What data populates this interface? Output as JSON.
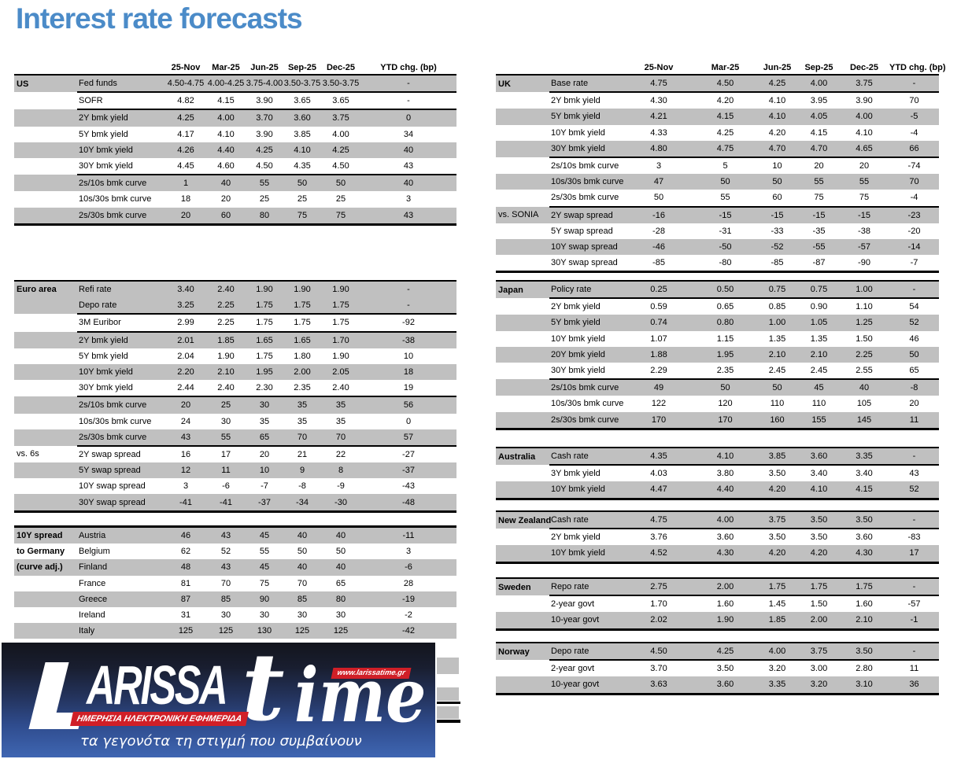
{
  "title": "Interest rate forecasts",
  "colors": {
    "title_blue": "#4b8bc8",
    "row_shade_gray": "#c0c0c0",
    "logo_red": "#d01f27",
    "logo_gradient_top": "#13151d",
    "logo_gradient_bottom": "#3f66b2"
  },
  "columns": [
    "25-Nov",
    "Mar-25",
    "Jun-25",
    "Sep-25",
    "Dec-25",
    "YTD chg. (bp)"
  ],
  "tables": [
    {
      "id": "us",
      "rows": [
        {
          "g": "US",
          "label": "Fed funds",
          "v": [
            "4.50-4.75",
            "4.00-4.25",
            "3.75-4.00",
            "3.50-3.75",
            "3.50-3.75"
          ],
          "ytd": "-",
          "shade": true,
          "sep": true
        },
        {
          "label": "SOFR",
          "v": [
            "4.82",
            "4.15",
            "3.90",
            "3.65",
            "3.65"
          ],
          "ytd": "-",
          "sep": true
        },
        {
          "label": "2Y bmk yield",
          "v": [
            "4.25",
            "4.00",
            "3.70",
            "3.60",
            "3.75"
          ],
          "ytd": "0",
          "shade": true
        },
        {
          "label": "5Y bmk yield",
          "v": [
            "4.17",
            "4.10",
            "3.90",
            "3.85",
            "4.00"
          ],
          "ytd": "34"
        },
        {
          "label": "10Y bmk yield",
          "v": [
            "4.26",
            "4.40",
            "4.25",
            "4.10",
            "4.25"
          ],
          "ytd": "40",
          "shade": true
        },
        {
          "label": "30Y bmk yield",
          "v": [
            "4.45",
            "4.60",
            "4.50",
            "4.35",
            "4.50"
          ],
          "ytd": "43",
          "sep": true
        },
        {
          "label": "2s/10s bmk curve",
          "v": [
            "1",
            "40",
            "55",
            "50",
            "50"
          ],
          "ytd": "40",
          "shade": true
        },
        {
          "label": "10s/30s bmk curve",
          "v": [
            "18",
            "20",
            "25",
            "25",
            "25"
          ],
          "ytd": "3"
        },
        {
          "label": "2s/30s bmk curve",
          "v": [
            "20",
            "60",
            "80",
            "75",
            "75"
          ],
          "ytd": "43",
          "shade": true
        }
      ]
    },
    {
      "id": "euro_area",
      "rows": [
        {
          "g": "Euro area",
          "label": "Refi rate",
          "v": [
            "3.40",
            "2.40",
            "1.90",
            "1.90",
            "1.90"
          ],
          "ytd": "-",
          "shade": true
        },
        {
          "label": "Depo rate",
          "v": [
            "3.25",
            "2.25",
            "1.75",
            "1.75",
            "1.75"
          ],
          "ytd": "-",
          "shade": true,
          "sep": true
        },
        {
          "label": "3M Euribor",
          "v": [
            "2.99",
            "2.25",
            "1.75",
            "1.75",
            "1.75"
          ],
          "ytd": "-92",
          "sep": true
        },
        {
          "label": "2Y bmk yield",
          "v": [
            "2.01",
            "1.85",
            "1.65",
            "1.65",
            "1.70"
          ],
          "ytd": "-38",
          "shade": true
        },
        {
          "label": "5Y bmk yield",
          "v": [
            "2.04",
            "1.90",
            "1.75",
            "1.80",
            "1.90"
          ],
          "ytd": "10"
        },
        {
          "label": "10Y bmk yield",
          "v": [
            "2.20",
            "2.10",
            "1.95",
            "2.00",
            "2.05"
          ],
          "ytd": "18",
          "shade": true
        },
        {
          "label": "30Y bmk yield",
          "v": [
            "2.44",
            "2.40",
            "2.30",
            "2.35",
            "2.40"
          ],
          "ytd": "19",
          "sep": true
        },
        {
          "label": "2s/10s bmk curve",
          "v": [
            "20",
            "25",
            "30",
            "35",
            "35"
          ],
          "ytd": "56",
          "shade": true
        },
        {
          "label": "10s/30s bmk curve",
          "v": [
            "24",
            "30",
            "35",
            "35",
            "35"
          ],
          "ytd": "0"
        },
        {
          "label": "2s/30s bmk curve",
          "v": [
            "43",
            "55",
            "65",
            "70",
            "70"
          ],
          "ytd": "57",
          "shade": true,
          "sep": true
        },
        {
          "g": "vs. 6s",
          "label": "2Y swap spread",
          "v": [
            "16",
            "17",
            "20",
            "21",
            "22"
          ],
          "ytd": "-27"
        },
        {
          "label": "5Y swap spread",
          "v": [
            "12",
            "11",
            "10",
            "9",
            "8"
          ],
          "ytd": "-37",
          "shade": true
        },
        {
          "label": "10Y swap spread",
          "v": [
            "3",
            "-6",
            "-7",
            "-8",
            "-9"
          ],
          "ytd": "-43"
        },
        {
          "label": "30Y swap spread",
          "v": [
            "-41",
            "-41",
            "-37",
            "-34",
            "-30"
          ],
          "ytd": "-48",
          "shade": true
        }
      ]
    },
    {
      "id": "spread_10y_germany",
      "rows": [
        {
          "g": "10Y spread",
          "label": "Austria",
          "v": [
            "46",
            "43",
            "45",
            "40",
            "40"
          ],
          "ytd": "-11",
          "shade": true
        },
        {
          "g": "to Germany",
          "label": "Belgium",
          "v": [
            "62",
            "52",
            "55",
            "50",
            "50"
          ],
          "ytd": "3"
        },
        {
          "g": "(curve adj.)",
          "label": "Finland",
          "v": [
            "48",
            "43",
            "45",
            "40",
            "40"
          ],
          "ytd": "-6",
          "shade": true
        },
        {
          "label": "France",
          "v": [
            "81",
            "70",
            "75",
            "70",
            "65"
          ],
          "ytd": "28"
        },
        {
          "label": "Greece",
          "v": [
            "87",
            "85",
            "90",
            "85",
            "80"
          ],
          "ytd": "-19",
          "shade": true
        },
        {
          "label": "Ireland",
          "v": [
            "31",
            "30",
            "30",
            "30",
            "30"
          ],
          "ytd": "-2"
        },
        {
          "label": "Italy",
          "v": [
            "125",
            "125",
            "130",
            "125",
            "125"
          ],
          "ytd": "-42",
          "shade": true
        }
      ]
    },
    {
      "id": "uk",
      "rows": [
        {
          "g": "UK",
          "label": "Base rate",
          "v": [
            "4.75",
            "4.50",
            "4.25",
            "4.00",
            "3.75"
          ],
          "ytd": "-",
          "shade": true,
          "sep": true
        },
        {
          "label": "2Y bmk yield",
          "v": [
            "4.30",
            "4.20",
            "4.10",
            "3.95",
            "3.90"
          ],
          "ytd": "70"
        },
        {
          "label": "5Y bmk yield",
          "v": [
            "4.21",
            "4.15",
            "4.10",
            "4.05",
            "4.00"
          ],
          "ytd": "-5",
          "shade": true
        },
        {
          "label": "10Y bmk yield",
          "v": [
            "4.33",
            "4.25",
            "4.20",
            "4.15",
            "4.10"
          ],
          "ytd": "-4"
        },
        {
          "label": "30Y bmk yield",
          "v": [
            "4.80",
            "4.75",
            "4.70",
            "4.70",
            "4.65"
          ],
          "ytd": "66",
          "shade": true,
          "sep": true
        },
        {
          "label": "2s/10s bmk curve",
          "v": [
            "3",
            "5",
            "10",
            "20",
            "20"
          ],
          "ytd": "-74"
        },
        {
          "label": "10s/30s bmk curve",
          "v": [
            "47",
            "50",
            "50",
            "55",
            "55"
          ],
          "ytd": "70",
          "shade": true
        },
        {
          "label": "2s/30s bmk curve",
          "v": [
            "50",
            "55",
            "60",
            "75",
            "75"
          ],
          "ytd": "-4",
          "sep": true
        },
        {
          "g": "vs. SONIA",
          "label": "2Y swap spread",
          "v": [
            "-16",
            "-15",
            "-15",
            "-15",
            "-15"
          ],
          "ytd": "-23",
          "shade": true
        },
        {
          "label": "5Y swap spread",
          "v": [
            "-28",
            "-31",
            "-33",
            "-35",
            "-38"
          ],
          "ytd": "-20"
        },
        {
          "label": "10Y swap spread",
          "v": [
            "-46",
            "-50",
            "-52",
            "-55",
            "-57"
          ],
          "ytd": "-14",
          "shade": true
        },
        {
          "label": "30Y swap spread",
          "v": [
            "-85",
            "-80",
            "-85",
            "-87",
            "-90"
          ],
          "ytd": "-7"
        }
      ]
    },
    {
      "id": "japan",
      "rows": [
        {
          "g": "Japan",
          "label": "Policy rate",
          "v": [
            "0.25",
            "0.50",
            "0.75",
            "0.75",
            "1.00"
          ],
          "ytd": "-",
          "shade": true,
          "sep": true
        },
        {
          "label": "2Y bmk yield",
          "v": [
            "0.59",
            "0.65",
            "0.85",
            "0.90",
            "1.10"
          ],
          "ytd": "54"
        },
        {
          "label": "5Y bmk yield",
          "v": [
            "0.74",
            "0.80",
            "1.00",
            "1.05",
            "1.25"
          ],
          "ytd": "52",
          "shade": true
        },
        {
          "label": "10Y bmk yield",
          "v": [
            "1.07",
            "1.15",
            "1.35",
            "1.35",
            "1.50"
          ],
          "ytd": "46"
        },
        {
          "label": "20Y bmk yield",
          "v": [
            "1.88",
            "1.95",
            "2.10",
            "2.10",
            "2.25"
          ],
          "ytd": "50",
          "shade": true
        },
        {
          "label": "30Y bmk yield",
          "v": [
            "2.29",
            "2.35",
            "2.45",
            "2.45",
            "2.55"
          ],
          "ytd": "65",
          "sep": true
        },
        {
          "label": "2s/10s bmk curve",
          "v": [
            "49",
            "50",
            "50",
            "45",
            "40"
          ],
          "ytd": "-8",
          "shade": true
        },
        {
          "label": "10s/30s bmk curve",
          "v": [
            "122",
            "120",
            "110",
            "110",
            "105"
          ],
          "ytd": "20"
        },
        {
          "label": "2s/30s bmk curve",
          "v": [
            "170",
            "170",
            "160",
            "155",
            "145"
          ],
          "ytd": "11",
          "shade": true
        }
      ]
    },
    {
      "id": "australia",
      "rows": [
        {
          "g": "Australia",
          "label": "Cash rate",
          "v": [
            "4.35",
            "4.10",
            "3.85",
            "3.60",
            "3.35"
          ],
          "ytd": "-",
          "shade": true,
          "sep": true
        },
        {
          "label": "3Y bmk yield",
          "v": [
            "4.03",
            "3.80",
            "3.50",
            "3.40",
            "3.40"
          ],
          "ytd": "43"
        },
        {
          "label": "10Y bmk yield",
          "v": [
            "4.47",
            "4.40",
            "4.20",
            "4.10",
            "4.15"
          ],
          "ytd": "52",
          "shade": true
        }
      ]
    },
    {
      "id": "new_zealand",
      "rows": [
        {
          "g": "New Zealand",
          "label": "Cash rate",
          "v": [
            "4.75",
            "4.00",
            "3.75",
            "3.50",
            "3.50"
          ],
          "ytd": "-",
          "shade": true,
          "sep": true
        },
        {
          "label": "2Y bmk yield",
          "v": [
            "3.76",
            "3.60",
            "3.50",
            "3.50",
            "3.60"
          ],
          "ytd": "-83"
        },
        {
          "label": "10Y bmk yield",
          "v": [
            "4.52",
            "4.30",
            "4.20",
            "4.20",
            "4.30"
          ],
          "ytd": "17",
          "shade": true
        }
      ]
    },
    {
      "id": "sweden",
      "rows": [
        {
          "g": "Sweden",
          "label": "Repo rate",
          "v": [
            "2.75",
            "2.00",
            "1.75",
            "1.75",
            "1.75"
          ],
          "ytd": "-",
          "shade": true,
          "sep": true
        },
        {
          "label": "2-year govt",
          "v": [
            "1.70",
            "1.60",
            "1.45",
            "1.50",
            "1.60"
          ],
          "ytd": "-57"
        },
        {
          "label": "10-year govt",
          "v": [
            "2.02",
            "1.90",
            "1.85",
            "2.00",
            "2.10"
          ],
          "ytd": "-1",
          "shade": true
        }
      ]
    },
    {
      "id": "norway",
      "rows": [
        {
          "g": "Norway",
          "label": "Depo rate",
          "v": [
            "4.50",
            "4.25",
            "4.00",
            "3.75",
            "3.50"
          ],
          "ytd": "-",
          "shade": true,
          "sep": true
        },
        {
          "label": "2-year govt",
          "v": [
            "3.70",
            "3.50",
            "3.20",
            "3.00",
            "2.80"
          ],
          "ytd": "11"
        },
        {
          "label": "10-year govt",
          "v": [
            "3.63",
            "3.60",
            "3.35",
            "3.20",
            "3.10"
          ],
          "ytd": "36",
          "shade": true
        }
      ]
    }
  ],
  "logo": {
    "brand_arissa": "ARISSA",
    "brand_t": "t",
    "brand_ime": "ime",
    "url": "www.larissatime.gr",
    "banner": "ΗΜΕΡΗΣΙΑ ΗΛΕΚΤΡΟΝΙΚΗ ΕΦΗΜΕΡΙΔΑ",
    "tagline": "τα γεγονότα τη στιγμή που συμβαίνουν"
  }
}
